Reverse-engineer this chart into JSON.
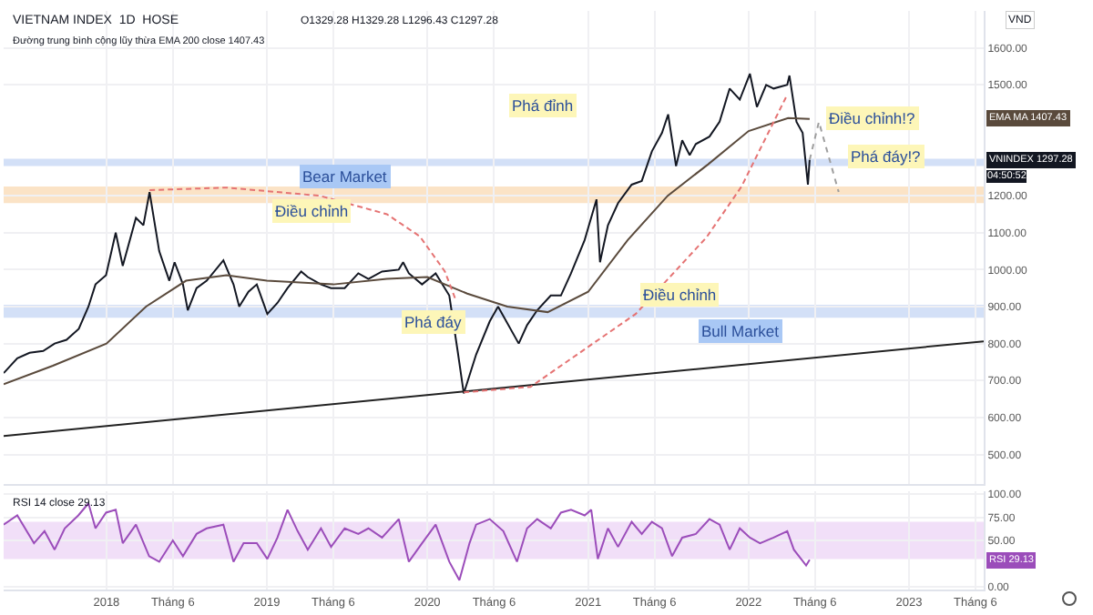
{
  "chart_data": [
    {
      "type": "line",
      "ylabel": "VND",
      "xlim": [
        "2017-05-12",
        "2023-06-20"
      ],
      "ylim": [
        420,
        1700
      ],
      "xticks": [
        {
          "value": "2018",
          "label": null
        },
        {
          "value": "2018-06",
          "label": null
        },
        {
          "value": "2019",
          "label": null
        },
        {
          "value": "2019-06",
          "label": null
        },
        {
          "value": "2020",
          "label": null
        },
        {
          "value": "2020-06",
          "label": null
        },
        {
          "value": "2021",
          "label": null
        },
        {
          "value": "2021-06",
          "label": null
        },
        {
          "value": "2022",
          "label": null
        },
        {
          "value": "2022-06",
          "label": null
        },
        {
          "value": "2023",
          "label": null
        },
        {
          "value": "2023-06",
          "label": null
        }
      ],
      "yticks": [
        {
          "value": 500,
          "label": "500.00"
        },
        {
          "value": 600,
          "label": "600.00"
        },
        {
          "value": 700,
          "label": "700.00"
        },
        {
          "value": 800,
          "label": "800.00"
        },
        {
          "value": 900,
          "label": "900.00"
        },
        {
          "value": 1000,
          "label": "1000.00"
        },
        {
          "value": 1100,
          "label": "1100.00"
        },
        {
          "value": 1200,
          "label": "1200.00"
        },
        {
          "value": 1500,
          "label": "1500.00"
        },
        {
          "value": 1600,
          "label": "1600.00"
        }
      ],
      "tick_labels": "y",
      "grid": true,
      "bands": [
        {
          "axis": "y",
          "from": 1180,
          "to": 1225,
          "color": "#fbe3c6"
        },
        {
          "axis": "y",
          "from": 870,
          "to": 905,
          "color": "#d3e0f7"
        },
        {
          "axis": "y",
          "from": 1280,
          "to": 1300,
          "color": "#d3e0f7"
        }
      ],
      "series": [
        {
          "name": "VNINDEX",
          "color": "#131722",
          "x": [
            "2017-05-12",
            "2017-06-12",
            "2017-07-10",
            "2017-08-10",
            "2017-09-05",
            "2017-10-02",
            "2017-10-30",
            "2017-11-21",
            "2017-12-07",
            "2017-12-31",
            "2018-01-22",
            "2018-02-07",
            "2018-03-09",
            "2018-03-26",
            "2018-04-09",
            "2018-04-20",
            "2018-05-01",
            "2018-05-24",
            "2018-06-05",
            "2018-06-24",
            "2018-07-05",
            "2018-07-25",
            "2018-08-17",
            "2018-09-24",
            "2018-10-17",
            "2018-10-30",
            "2018-11-20",
            "2018-12-09",
            "2019-01-02",
            "2019-01-25",
            "2019-02-17",
            "2019-03-20",
            "2019-04-04",
            "2019-05-04",
            "2019-05-27",
            "2019-06-27",
            "2019-07-28",
            "2019-08-20",
            "2019-09-20",
            "2019-10-28",
            "2019-11-07",
            "2019-11-20",
            "2019-12-20",
            "2020-01-20",
            "2020-02-20",
            "2020-03-10",
            "2020-03-24",
            "2020-04-21",
            "2020-05-22",
            "2020-06-10",
            "2020-07-27",
            "2020-08-15",
            "2020-09-07",
            "2020-10-08",
            "2020-10-31",
            "2020-11-23",
            "2020-12-24",
            "2021-01-20",
            "2021-01-28",
            "2021-02-15",
            "2021-03-10",
            "2021-04-10",
            "2021-05-03",
            "2021-05-26",
            "2021-06-18",
            "2021-07-02",
            "2021-07-20",
            "2021-08-03",
            "2021-08-20",
            "2021-09-03",
            "2021-10-04",
            "2021-10-27",
            "2021-11-19",
            "2021-12-12",
            "2022-01-04",
            "2022-01-20",
            "2022-02-10",
            "2022-02-27",
            "2022-03-30",
            "2022-04-04",
            "2022-04-20",
            "2022-05-04",
            "2022-05-16",
            "2022-05-20"
          ],
          "values": [
            720,
            760,
            775,
            780,
            800,
            810,
            840,
            900,
            960,
            985,
            1100,
            1010,
            1140,
            1120,
            1210,
            1130,
            1050,
            970,
            1020,
            960,
            890,
            950,
            970,
            1025,
            960,
            900,
            940,
            960,
            880,
            910,
            950,
            995,
            980,
            960,
            950,
            950,
            990,
            975,
            995,
            1000,
            1020,
            990,
            960,
            990,
            930,
            780,
            665,
            770,
            860,
            900,
            800,
            850,
            890,
            930,
            930,
            990,
            1080,
            1190,
            1020,
            1120,
            1180,
            1230,
            1240,
            1320,
            1370,
            1420,
            1280,
            1350,
            1310,
            1340,
            1360,
            1400,
            1490,
            1460,
            1530,
            1440,
            1500,
            1490,
            1500,
            1525,
            1400,
            1370,
            1230,
            1297.28
          ],
          "value_labels": [
            null,
            null,
            null,
            null,
            null,
            null,
            null,
            null,
            null,
            null,
            null,
            null,
            null,
            null,
            null,
            null,
            null,
            null,
            null,
            null,
            null,
            null,
            null,
            null,
            null,
            null,
            null,
            null,
            null,
            null,
            null,
            null,
            null,
            null,
            null,
            null,
            null,
            null,
            null,
            null,
            null,
            null,
            null,
            null,
            null,
            null,
            null,
            null,
            null,
            null,
            null,
            null,
            null,
            null,
            null,
            null,
            null,
            null,
            null,
            null,
            null,
            null,
            null,
            null,
            null,
            null,
            null,
            null,
            null,
            null,
            null,
            null,
            null,
            null,
            null,
            null,
            null,
            null,
            null,
            null,
            null,
            null,
            null,
            "1297.28"
          ]
        },
        {
          "name": "EMA MA",
          "color": "#5a4a3c",
          "x": [
            "2017-05-12",
            "2017-09-01",
            "2018-01-01",
            "2018-04-01",
            "2018-07-01",
            "2018-10-01",
            "2019-01-01",
            "2019-06-01",
            "2019-10-01",
            "2020-01-01",
            "2020-04-01",
            "2020-07-01",
            "2020-10-01",
            "2021-01-01",
            "2021-04-01",
            "2021-07-01",
            "2021-10-01",
            "2022-01-01",
            "2022-04-01",
            "2022-05-20"
          ],
          "values": [
            690,
            740,
            800,
            900,
            970,
            985,
            970,
            960,
            975,
            980,
            935,
            900,
            885,
            940,
            1080,
            1200,
            1285,
            1375,
            1410,
            1407.43
          ],
          "value_labels": [
            null,
            null,
            null,
            null,
            null,
            null,
            null,
            null,
            null,
            null,
            null,
            null,
            null,
            null,
            null,
            null,
            null,
            null,
            null,
            "1407.43"
          ]
        },
        {
          "color": "#222222",
          "x": [
            "2017-05-12",
            "2023-06-20"
          ],
          "values": [
            550,
            806
          ]
        },
        {
          "line_style": "dashed",
          "color": "#e57373",
          "x": [
            "2018-04-09",
            "2018-10-01",
            "2019-05-01",
            "2019-10-01",
            "2019-12-15",
            "2020-02-10",
            "2020-03-05"
          ],
          "values": [
            1215,
            1222,
            1200,
            1150,
            1090,
            995,
            920
          ]
        },
        {
          "line_style": "dashed",
          "color": "#e57373",
          "x": [
            "2020-03-24",
            "2020-08-23",
            "2021-04-19",
            "2021-09-27",
            "2021-12-16",
            "2022-03-29"
          ],
          "values": [
            668,
            683,
            880,
            1087,
            1225,
            1471
          ]
        },
        {
          "line_style": "dotted",
          "color": "#9e9e9e",
          "x": [
            "2022-05-20",
            "2022-06-10",
            "2022-07-25"
          ],
          "values": [
            1297,
            1400,
            1210
          ]
        }
      ],
      "annotations": [
        "Bear Market",
        "Bull Market",
        "Điều chỉnh",
        "Phá đáy",
        "Phá đỉnh",
        "Điều chỉnh",
        "Điều chỉnh!?",
        "Phá đáy!?",
        "VIETNAM INDEX  1D  HOSE",
        "O1329.28 H1329.28 L1296.43 C1297.28",
        "Đường trung bình cộng lũy thừa EMA 200 close 1407.43",
        "04:50:52"
      ]
    },
    {
      "type": "line",
      "xlim": [
        "2017-05-12",
        "2023-06-20"
      ],
      "ylim": [
        -3,
        103
      ],
      "yticks": [
        {
          "value": 0,
          "label": "0.00"
        },
        {
          "value": 50,
          "label": "50.00"
        },
        {
          "value": 75,
          "label": "75.00"
        },
        {
          "value": 100,
          "label": "100.00"
        }
      ],
      "xticks": [
        "2018",
        {
          "value": "2018-06",
          "label": "Tháng 6"
        },
        "2019",
        {
          "value": "2019-06",
          "label": "Tháng 6"
        },
        "2020",
        {
          "value": "2020-06",
          "label": "Tháng 6"
        },
        "2021",
        {
          "value": "2021-06",
          "label": "Tháng 6"
        },
        "2022",
        {
          "value": "2022-06",
          "label": "Tháng 6"
        },
        "2023",
        {
          "value": "2023-06",
          "label": "Tháng 6"
        }
      ],
      "grid": true,
      "bands": [
        {
          "axis": "y",
          "from": 30,
          "to": 70,
          "color": "#f1dff8"
        }
      ],
      "series": [
        {
          "name": "RSI",
          "color": "#9b4dba",
          "x": [
            "2017-05-12",
            "2017-06-12",
            "2017-07-20",
            "2017-08-13",
            "2017-09-05",
            "2017-09-28",
            "2017-10-29",
            "2017-11-21",
            "2017-12-07",
            "2017-12-31",
            "2018-01-22",
            "2018-02-07",
            "2018-03-09",
            "2018-04-08",
            "2018-05-01",
            "2018-06-01",
            "2018-06-24",
            "2018-07-25",
            "2018-08-17",
            "2018-09-24",
            "2018-10-17",
            "2018-11-09",
            "2018-12-09",
            "2019-01-02",
            "2019-01-25",
            "2019-02-17",
            "2019-03-12",
            "2019-04-04",
            "2019-05-04",
            "2019-05-27",
            "2019-06-27",
            "2019-07-28",
            "2019-08-20",
            "2019-09-20",
            "2019-10-28",
            "2019-11-20",
            "2019-12-20",
            "2020-01-20",
            "2020-02-20",
            "2020-03-14",
            "2020-04-06",
            "2020-04-21",
            "2020-05-22",
            "2020-06-22",
            "2020-07-23",
            "2020-08-15",
            "2020-09-07",
            "2020-10-08",
            "2020-10-31",
            "2020-11-23",
            "2020-12-24",
            "2021-01-08",
            "2021-01-23",
            "2021-02-15",
            "2021-03-10",
            "2021-04-10",
            "2021-05-03",
            "2021-05-26",
            "2021-06-18",
            "2021-07-11",
            "2021-08-03",
            "2021-09-03",
            "2021-10-04",
            "2021-10-27",
            "2021-11-19",
            "2021-12-12",
            "2022-01-04",
            "2022-01-27",
            "2022-02-27",
            "2022-03-30",
            "2022-04-14",
            "2022-05-12",
            "2022-05-20"
          ],
          "values": [
            67,
            77,
            47,
            60,
            40,
            63,
            77,
            90,
            63,
            80,
            83,
            47,
            67,
            33,
            27,
            50,
            33,
            57,
            63,
            67,
            27,
            47,
            47,
            30,
            53,
            83,
            60,
            40,
            63,
            43,
            63,
            57,
            63,
            53,
            73,
            27,
            47,
            67,
            27,
            7,
            47,
            67,
            73,
            60,
            27,
            63,
            73,
            63,
            80,
            83,
            77,
            83,
            30,
            63,
            43,
            70,
            57,
            70,
            63,
            33,
            53,
            57,
            73,
            67,
            40,
            63,
            53,
            47,
            53,
            60,
            40,
            23,
            29.13
          ],
          "value_labels": [
            null,
            null,
            null,
            null,
            null,
            null,
            null,
            null,
            null,
            null,
            null,
            null,
            null,
            null,
            null,
            null,
            null,
            null,
            null,
            null,
            null,
            null,
            null,
            null,
            null,
            null,
            null,
            null,
            null,
            null,
            null,
            null,
            null,
            null,
            null,
            null,
            null,
            null,
            null,
            null,
            null,
            null,
            null,
            null,
            null,
            null,
            null,
            null,
            null,
            null,
            null,
            null,
            null,
            null,
            null,
            null,
            null,
            null,
            null,
            null,
            null,
            null,
            null,
            null,
            null,
            null,
            null,
            null,
            null,
            null,
            null,
            null,
            "29.13"
          ]
        }
      ],
      "annotations": [
        "RSI 14 close 29.13"
      ]
    }
  ]
}
